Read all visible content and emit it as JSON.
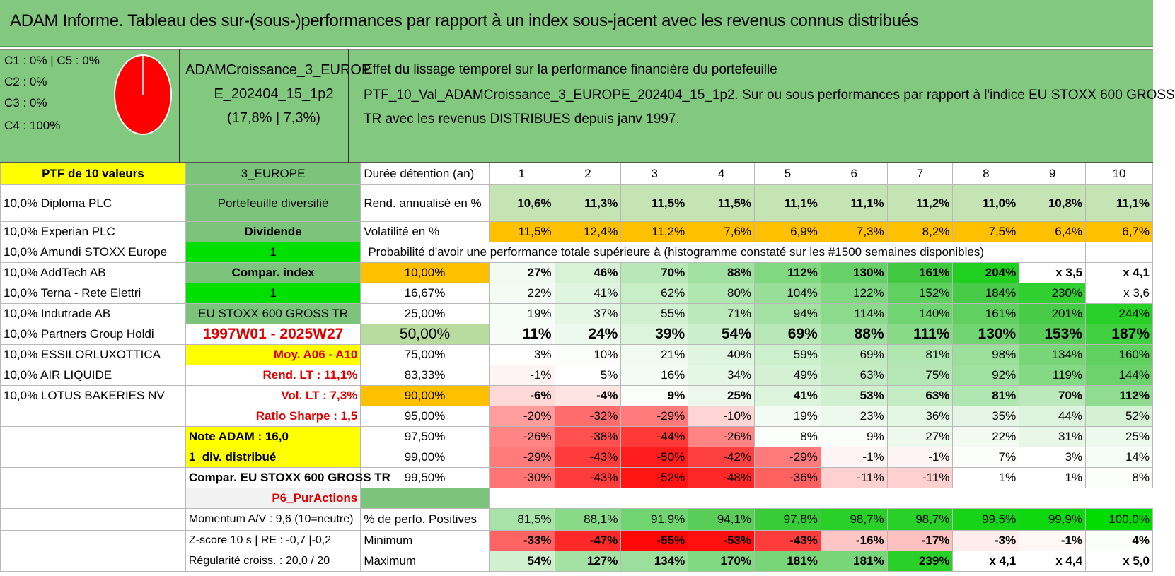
{
  "title": "ADAM Informe. Tableau des sur-(sous-)performances par rapport à un index sous-jacent avec les revenus connus distribués",
  "header": {
    "allocations": [
      "C1 : 0% | C5 : 0%",
      "C2 : 0%",
      "C3 : 0%",
      "C4 : 100%"
    ],
    "pie_color": "#ff0000",
    "portfolio_name_1": "ADAMCroissance_3_EUROP",
    "portfolio_name_2": "E_202404_15_1p2",
    "portfolio_stats": "(17,8% | 7,3%)",
    "description": [
      "Effet du lissage temporel sur la performance financière du portefeuille",
      "PTF_10_Val_ADAMCroissance_3_EUROPE_202404_15_1p2. Sur ou sous performances par rapport à l'indice EU STOXX 600 GROSS",
      "TR avec les revenus DISTRIBUES depuis janv 1997."
    ]
  },
  "row_holding": {
    "c0": "PTF de 10 valeurs",
    "c1": "3_EUROPE",
    "c2": "Durée détention (an)",
    "years": [
      "1",
      "2",
      "3",
      "4",
      "5",
      "6",
      "7",
      "8",
      "9",
      "10"
    ]
  },
  "row_rend": {
    "c0": "10,0% Diploma PLC",
    "c1": "Portefeuille diversifié",
    "c2": "Rend. annualisé en %",
    "vals": [
      "10,6%",
      "11,3%",
      "11,5%",
      "11,5%",
      "11,1%",
      "11,1%",
      "11,2%",
      "11,0%",
      "10,8%",
      "11,1%"
    ]
  },
  "row_vol": {
    "c0": "10,0% Experian PLC",
    "c1": "Dividende",
    "c2": "Volatilité en %",
    "vals": [
      "11,5%",
      "12,4%",
      "11,2%",
      "7,6%",
      "6,9%",
      "7,3%",
      "8,2%",
      "7,5%",
      "6,4%",
      "6,7%"
    ]
  },
  "row_proba": {
    "c0": "10,0% Amundi STOXX Europe",
    "c1": "1",
    "c2": "Probabilité d'avoir une performance totale supérieure à (histogramme constaté sur les #1500 semaines disponibles)"
  },
  "prob_rows": [
    {
      "c0": "10,0% AddTech AB",
      "c1": "Compar. index",
      "p": "10,00%",
      "vals": [
        "27%",
        "46%",
        "70%",
        "88%",
        "112%",
        "130%",
        "161%",
        "204%",
        "x 3,5",
        "x 4,1"
      ],
      "colors": [
        "#f0faf0",
        "#d8f2d8",
        "#b8e8b8",
        "#a0e0a0",
        "#80d880",
        "#68d068",
        "#40c840",
        "#20d020",
        "#ffffff",
        "#ffffff"
      ],
      "bold": true
    },
    {
      "c0": "10,0% Terna - Rete Elettri",
      "c1": "1",
      "p": "16,67%",
      "vals": [
        "22%",
        "41%",
        "62%",
        "80%",
        "104%",
        "122%",
        "152%",
        "184%",
        "230%",
        "x 3,6"
      ],
      "colors": [
        "#f4fbf4",
        "#e0f5e0",
        "#c8eec8",
        "#b0e6b0",
        "#98de98",
        "#80d880",
        "#60d060",
        "#48cc48",
        "#30d030",
        "#ffffff"
      ],
      "bold": false
    },
    {
      "c0": "10,0% Indutrade AB",
      "c1": "EU STOXX 600 GROSS TR",
      "p": "25,00%",
      "vals": [
        "19%",
        "37%",
        "55%",
        "71%",
        "94%",
        "114%",
        "140%",
        "161%",
        "201%",
        "244%"
      ],
      "colors": [
        "#f6fcf6",
        "#e4f6e4",
        "#d0f0d0",
        "#bce9bc",
        "#a4e2a4",
        "#8cdb8c",
        "#70d470",
        "#60d060",
        "#48cc48",
        "#28d028"
      ],
      "bold": false
    },
    {
      "c0": "10,0% Partners Group Holdi",
      "c1": "1997W01 - 2025W27",
      "p": "50,00%",
      "vals": [
        "11%",
        "24%",
        "39%",
        "54%",
        "69%",
        "88%",
        "111%",
        "130%",
        "153%",
        "187%"
      ],
      "colors": [
        "#f8fcf8",
        "#eef9ee",
        "#dcf4dc",
        "#cceecc",
        "#b8e8b8",
        "#a0e0a0",
        "#88da88",
        "#70d470",
        "#58ce58",
        "#40d040"
      ],
      "bold": true,
      "big": true
    },
    {
      "c0": "10,0% ESSILORLUXOTTICA",
      "c1": "Moy. A06 - A10",
      "p": "75,00%",
      "vals": [
        "3%",
        "10%",
        "21%",
        "40%",
        "59%",
        "69%",
        "81%",
        "98%",
        "134%",
        "160%"
      ],
      "colors": [
        "#ffffff",
        "#fafdfa",
        "#f0faf0",
        "#e0f5e0",
        "#ccefcc",
        "#c0ebc0",
        "#b0e6b0",
        "#9cdf9c",
        "#78d678",
        "#60d060"
      ],
      "bold": false
    },
    {
      "c0": "10,0% AIR LIQUIDE",
      "c1": "Rend. LT : 11,1%",
      "p": "83,33%",
      "vals": [
        "-1%",
        "5%",
        "16%",
        "34%",
        "49%",
        "63%",
        "75%",
        "92%",
        "119%",
        "144%"
      ],
      "colors": [
        "#fff4f4",
        "#ffffff",
        "#f4fbf4",
        "#e4f6e4",
        "#d4f1d4",
        "#c4ecc4",
        "#b4e7b4",
        "#a0e0a0",
        "#84d984",
        "#6cd26c"
      ],
      "bold": false
    },
    {
      "c0": "10,0% LOTUS BAKERIES NV",
      "c1": "Vol. LT : 7,3%",
      "p": "90,00%",
      "vals": [
        "-6%",
        "-4%",
        "9%",
        "25%",
        "41%",
        "53%",
        "63%",
        "81%",
        "70%",
        "112%"
      ],
      "colors": [
        "#ffd8d8",
        "#ffe4e4",
        "#fafdfa",
        "#ecf8ec",
        "#dcf4dc",
        "#d0f0d0",
        "#c4ecc4",
        "#b0e6b0",
        "#bce9bc",
        "#90dc90"
      ],
      "bold": true
    },
    {
      "c0": "",
      "c1": "Ratio Sharpe : 1,5",
      "p": "95,00%",
      "vals": [
        "-20%",
        "-32%",
        "-29%",
        "-10%",
        "19%",
        "23%",
        "36%",
        "35%",
        "44%",
        "52%"
      ],
      "colors": [
        "#ff9c9c",
        "#ff6c6c",
        "#ff7a7a",
        "#ffd4d4",
        "#f4fbf4",
        "#eef9ee",
        "#e4f6e4",
        "#e6f6e6",
        "#dcf4dc",
        "#d4f1d4"
      ],
      "bold": false
    },
    {
      "c0": "",
      "c1": "Note ADAM : 16,0",
      "p": "97,50%",
      "vals": [
        "-26%",
        "-38%",
        "-44%",
        "-26%",
        "8%",
        "9%",
        "27%",
        "22%",
        "31%",
        "25%"
      ],
      "colors": [
        "#ff8484",
        "#ff5050",
        "#ff3838",
        "#ff8484",
        "#fcfefc",
        "#fafdfa",
        "#eef9ee",
        "#f2faf2",
        "#e8f7e8",
        "#eef9ee"
      ],
      "bold": false
    },
    {
      "c0": "",
      "c1": "1_div. distribué",
      "p": "99,00%",
      "vals": [
        "-29%",
        "-43%",
        "-50%",
        "-42%",
        "-29%",
        "-1%",
        "-1%",
        "7%",
        "3%",
        "14%"
      ],
      "colors": [
        "#ff7a7a",
        "#ff3c3c",
        "#ff1c1c",
        "#ff4040",
        "#ff7a7a",
        "#fff4f4",
        "#fff4f4",
        "#fcfefc",
        "#ffffff",
        "#f6fcf6"
      ],
      "bold": false
    },
    {
      "c0": "",
      "c1": "Compar. EU STOXX 600 GROSS TR",
      "p": "99,50%",
      "vals": [
        "-30%",
        "-43%",
        "-52%",
        "-48%",
        "-36%",
        "-11%",
        "-11%",
        "1%",
        "1%",
        "8%"
      ],
      "colors": [
        "#ff7474",
        "#ff3c3c",
        "#ff1414",
        "#ff2828",
        "#ff6060",
        "#ffd0d0",
        "#ffd0d0",
        "#ffffff",
        "#ffffff",
        "#fcfefc"
      ],
      "bold": false
    }
  ],
  "row_tag": {
    "c1": "P6_PurActions"
  },
  "row_pos": {
    "c1": "Momentum A/V : 9,6 (10=neutre)",
    "c2": "% de perfo. Positives",
    "vals": [
      "81,5%",
      "88,1%",
      "91,9%",
      "94,1%",
      "97,8%",
      "98,7%",
      "98,7%",
      "99,5%",
      "99,9%",
      "100,0%"
    ],
    "colors": [
      "#a8e4a8",
      "#88da88",
      "#70d470",
      "#58ce58",
      "#38cc38",
      "#28d028",
      "#28d028",
      "#18d418",
      "#10d810",
      "#00dc00"
    ]
  },
  "row_min": {
    "c1": "Z-score 10 s | RE : -0,7 |-0,2",
    "c2": "Minimum",
    "vals": [
      "-33%",
      "-47%",
      "-55%",
      "-53%",
      "-43%",
      "-16%",
      "-17%",
      "-3%",
      "-1%",
      "4%"
    ],
    "colors": [
      "#ff6464",
      "#ff2828",
      "#ff0808",
      "#ff1010",
      "#ff3c3c",
      "#ffc4c4",
      "#ffc0c0",
      "#ffecec",
      "#fff6f6",
      "#fcfefc"
    ]
  },
  "row_max": {
    "c1": "Régularité croiss. : 20,0 / 20",
    "c2": "Maximum",
    "vals": [
      "54%",
      "127%",
      "134%",
      "170%",
      "181%",
      "181%",
      "239%",
      "x 4,1",
      "x 4,4",
      "x 5,0"
    ],
    "colors": [
      "#d0f0d0",
      "#a4e2a4",
      "#9cdf9c",
      "#80d880",
      "#78d678",
      "#78d678",
      "#28d028",
      "#ffffff",
      "#ffffff",
      "#ffffff"
    ]
  }
}
